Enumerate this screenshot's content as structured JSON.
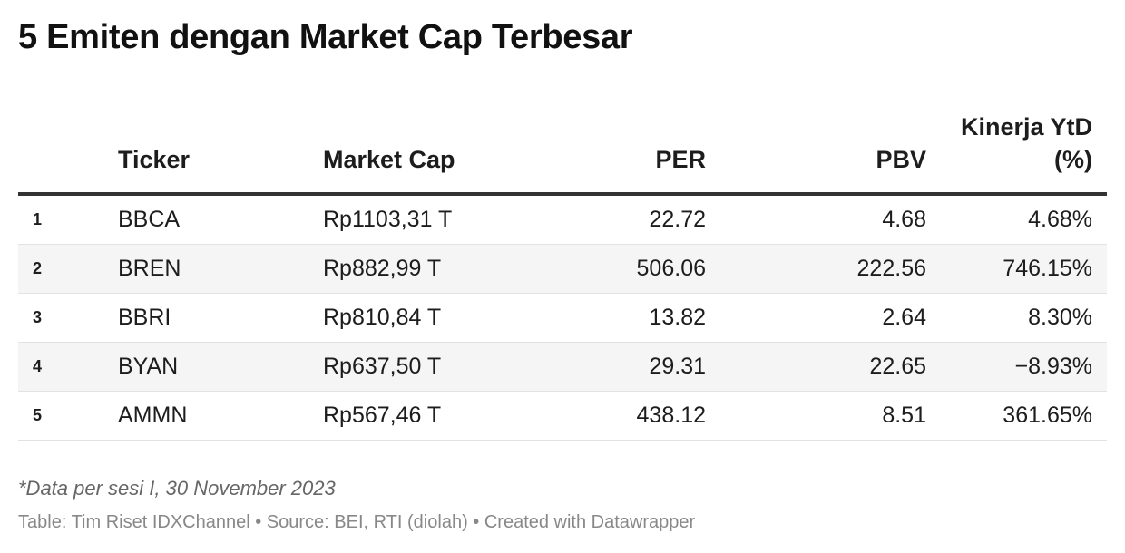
{
  "chart_data": {
    "type": "table",
    "title": "5 Emiten dengan Market Cap Terbesar",
    "columns": [
      "",
      "Ticker",
      "Market Cap",
      "PER",
      "PBV",
      "Kinerja YtD (%)"
    ],
    "rows": [
      {
        "rank": "1",
        "ticker": "BBCA",
        "market_cap": "Rp1103,31 T",
        "per": "22.72",
        "pbv": "4.68",
        "ytd": "4.68%"
      },
      {
        "rank": "2",
        "ticker": "BREN",
        "market_cap": "Rp882,99 T",
        "per": "506.06",
        "pbv": "222.56",
        "ytd": "746.15%"
      },
      {
        "rank": "3",
        "ticker": "BBRI",
        "market_cap": "Rp810,84 T",
        "per": "13.82",
        "pbv": "2.64",
        "ytd": "8.30%"
      },
      {
        "rank": "4",
        "ticker": "BYAN",
        "market_cap": "Rp637,50 T",
        "per": "29.31",
        "pbv": "22.65",
        "ytd": "−8.93%"
      },
      {
        "rank": "5",
        "ticker": "AMMN",
        "market_cap": "Rp567,46 T",
        "per": "438.12",
        "pbv": "8.51",
        "ytd": "361.65%"
      }
    ],
    "notes": "*Data per sesi I, 30 November 2023",
    "footer": "Table: Tim Riset IDXChannel • Source: BEI, RTI (diolah) • Created with Datawrapper"
  },
  "header": {
    "ticker": "Ticker",
    "market_cap": "Market Cap",
    "per": "PER",
    "pbv": "PBV",
    "ytd_line1": "Kinerja YtD",
    "ytd_line2": "(%)"
  },
  "colors": {
    "text": "#1d1d1d",
    "alt_row": "#f5f5f5",
    "header_rule": "#333333",
    "footer_text": "#888888"
  }
}
